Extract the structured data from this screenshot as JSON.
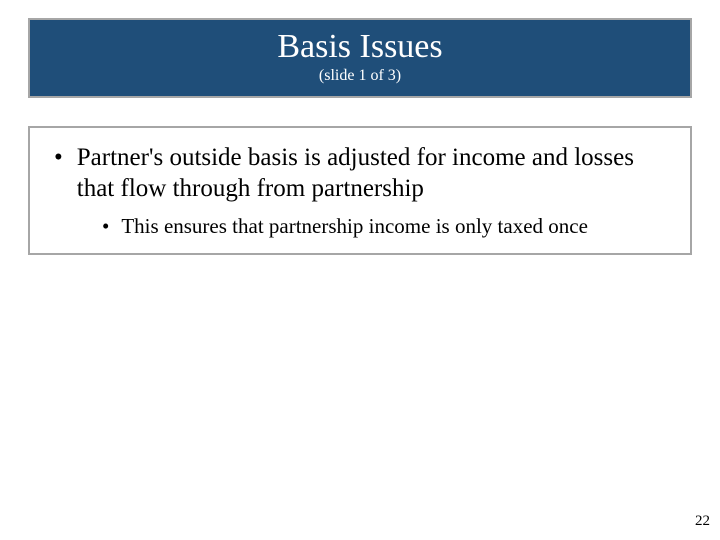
{
  "title": {
    "main": "Basis Issues",
    "sub": "(slide 1 of 3)"
  },
  "content": {
    "bullet1": "Partner's outside basis is adjusted for income and losses that flow through from partnership",
    "bullet2": "This ensures that partnership income is only taxed once"
  },
  "page_number": "22",
  "colors": {
    "title_bg": "#1f4e79",
    "border": "#a6a6a6",
    "text": "#000000",
    "title_text": "#ffffff",
    "background": "#ffffff"
  },
  "fonts": {
    "family": "Times New Roman",
    "title_main_size": 34,
    "title_sub_size": 16,
    "bullet1_size": 25,
    "bullet2_size": 21,
    "page_number_size": 15
  },
  "layout": {
    "slide_width": 720,
    "slide_height": 540
  }
}
